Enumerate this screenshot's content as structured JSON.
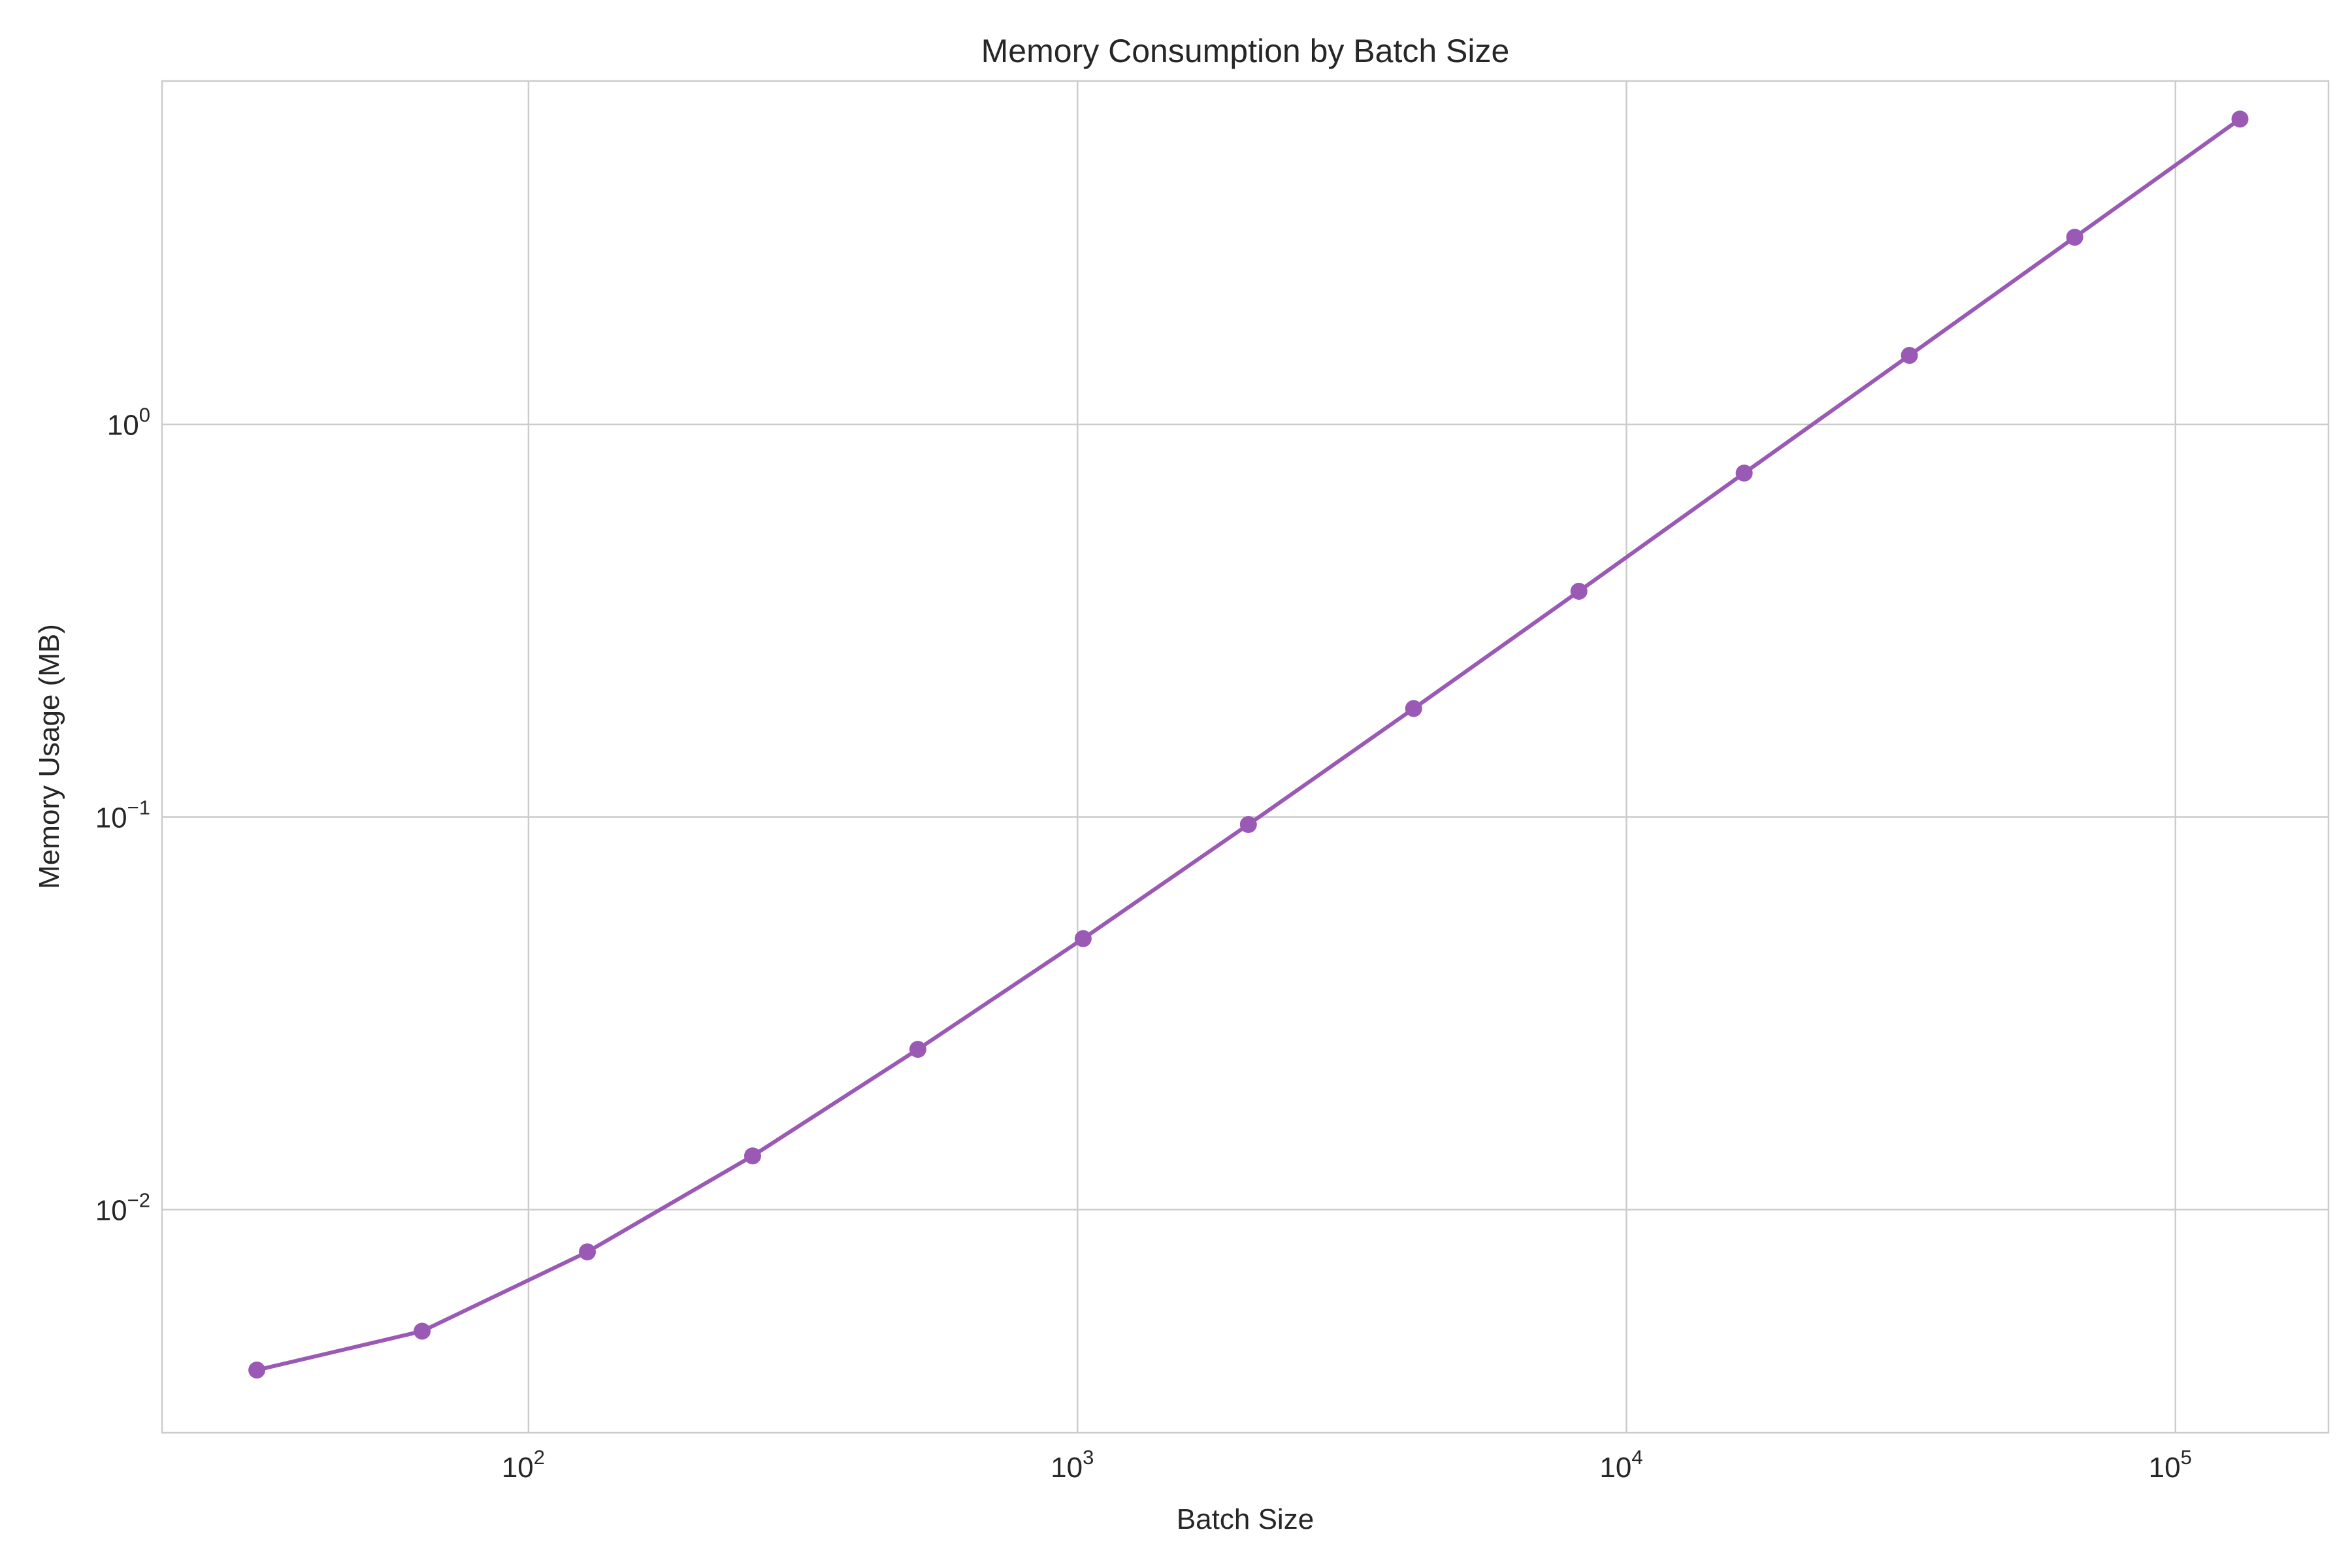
{
  "chart_data": {
    "type": "line",
    "title": "Memory Consumption by Batch Size",
    "xlabel": "Batch Size",
    "ylabel": "Memory Usage (MB)",
    "xscale": "log",
    "yscale": "log",
    "xlim": [
      21.5,
      190000
    ],
    "ylim": [
      0.0027,
      7.5
    ],
    "grid": true,
    "legend": "none",
    "x_ticks": [
      {
        "value": 100,
        "base": "10",
        "exp": "2"
      },
      {
        "value": 1000,
        "base": "10",
        "exp": "3"
      },
      {
        "value": 10000,
        "base": "10",
        "exp": "4"
      },
      {
        "value": 100000,
        "base": "10",
        "exp": "5"
      }
    ],
    "y_ticks": [
      {
        "value": 0.01,
        "base": "10",
        "exp": "−2"
      },
      {
        "value": 0.1,
        "base": "10",
        "exp": "−1"
      },
      {
        "value": 1,
        "base": "10",
        "exp": "0"
      }
    ],
    "series": [
      {
        "color": "#9b59b6",
        "x": [
          32,
          64,
          128,
          256,
          512,
          1024,
          2048,
          4096,
          8192,
          16384,
          32768,
          65536,
          131072
        ],
        "y": [
          0.0039,
          0.0049,
          0.0078,
          0.0137,
          0.0256,
          0.049,
          0.0957,
          0.189,
          0.376,
          0.752,
          1.5,
          3.0,
          6.0
        ]
      }
    ]
  }
}
